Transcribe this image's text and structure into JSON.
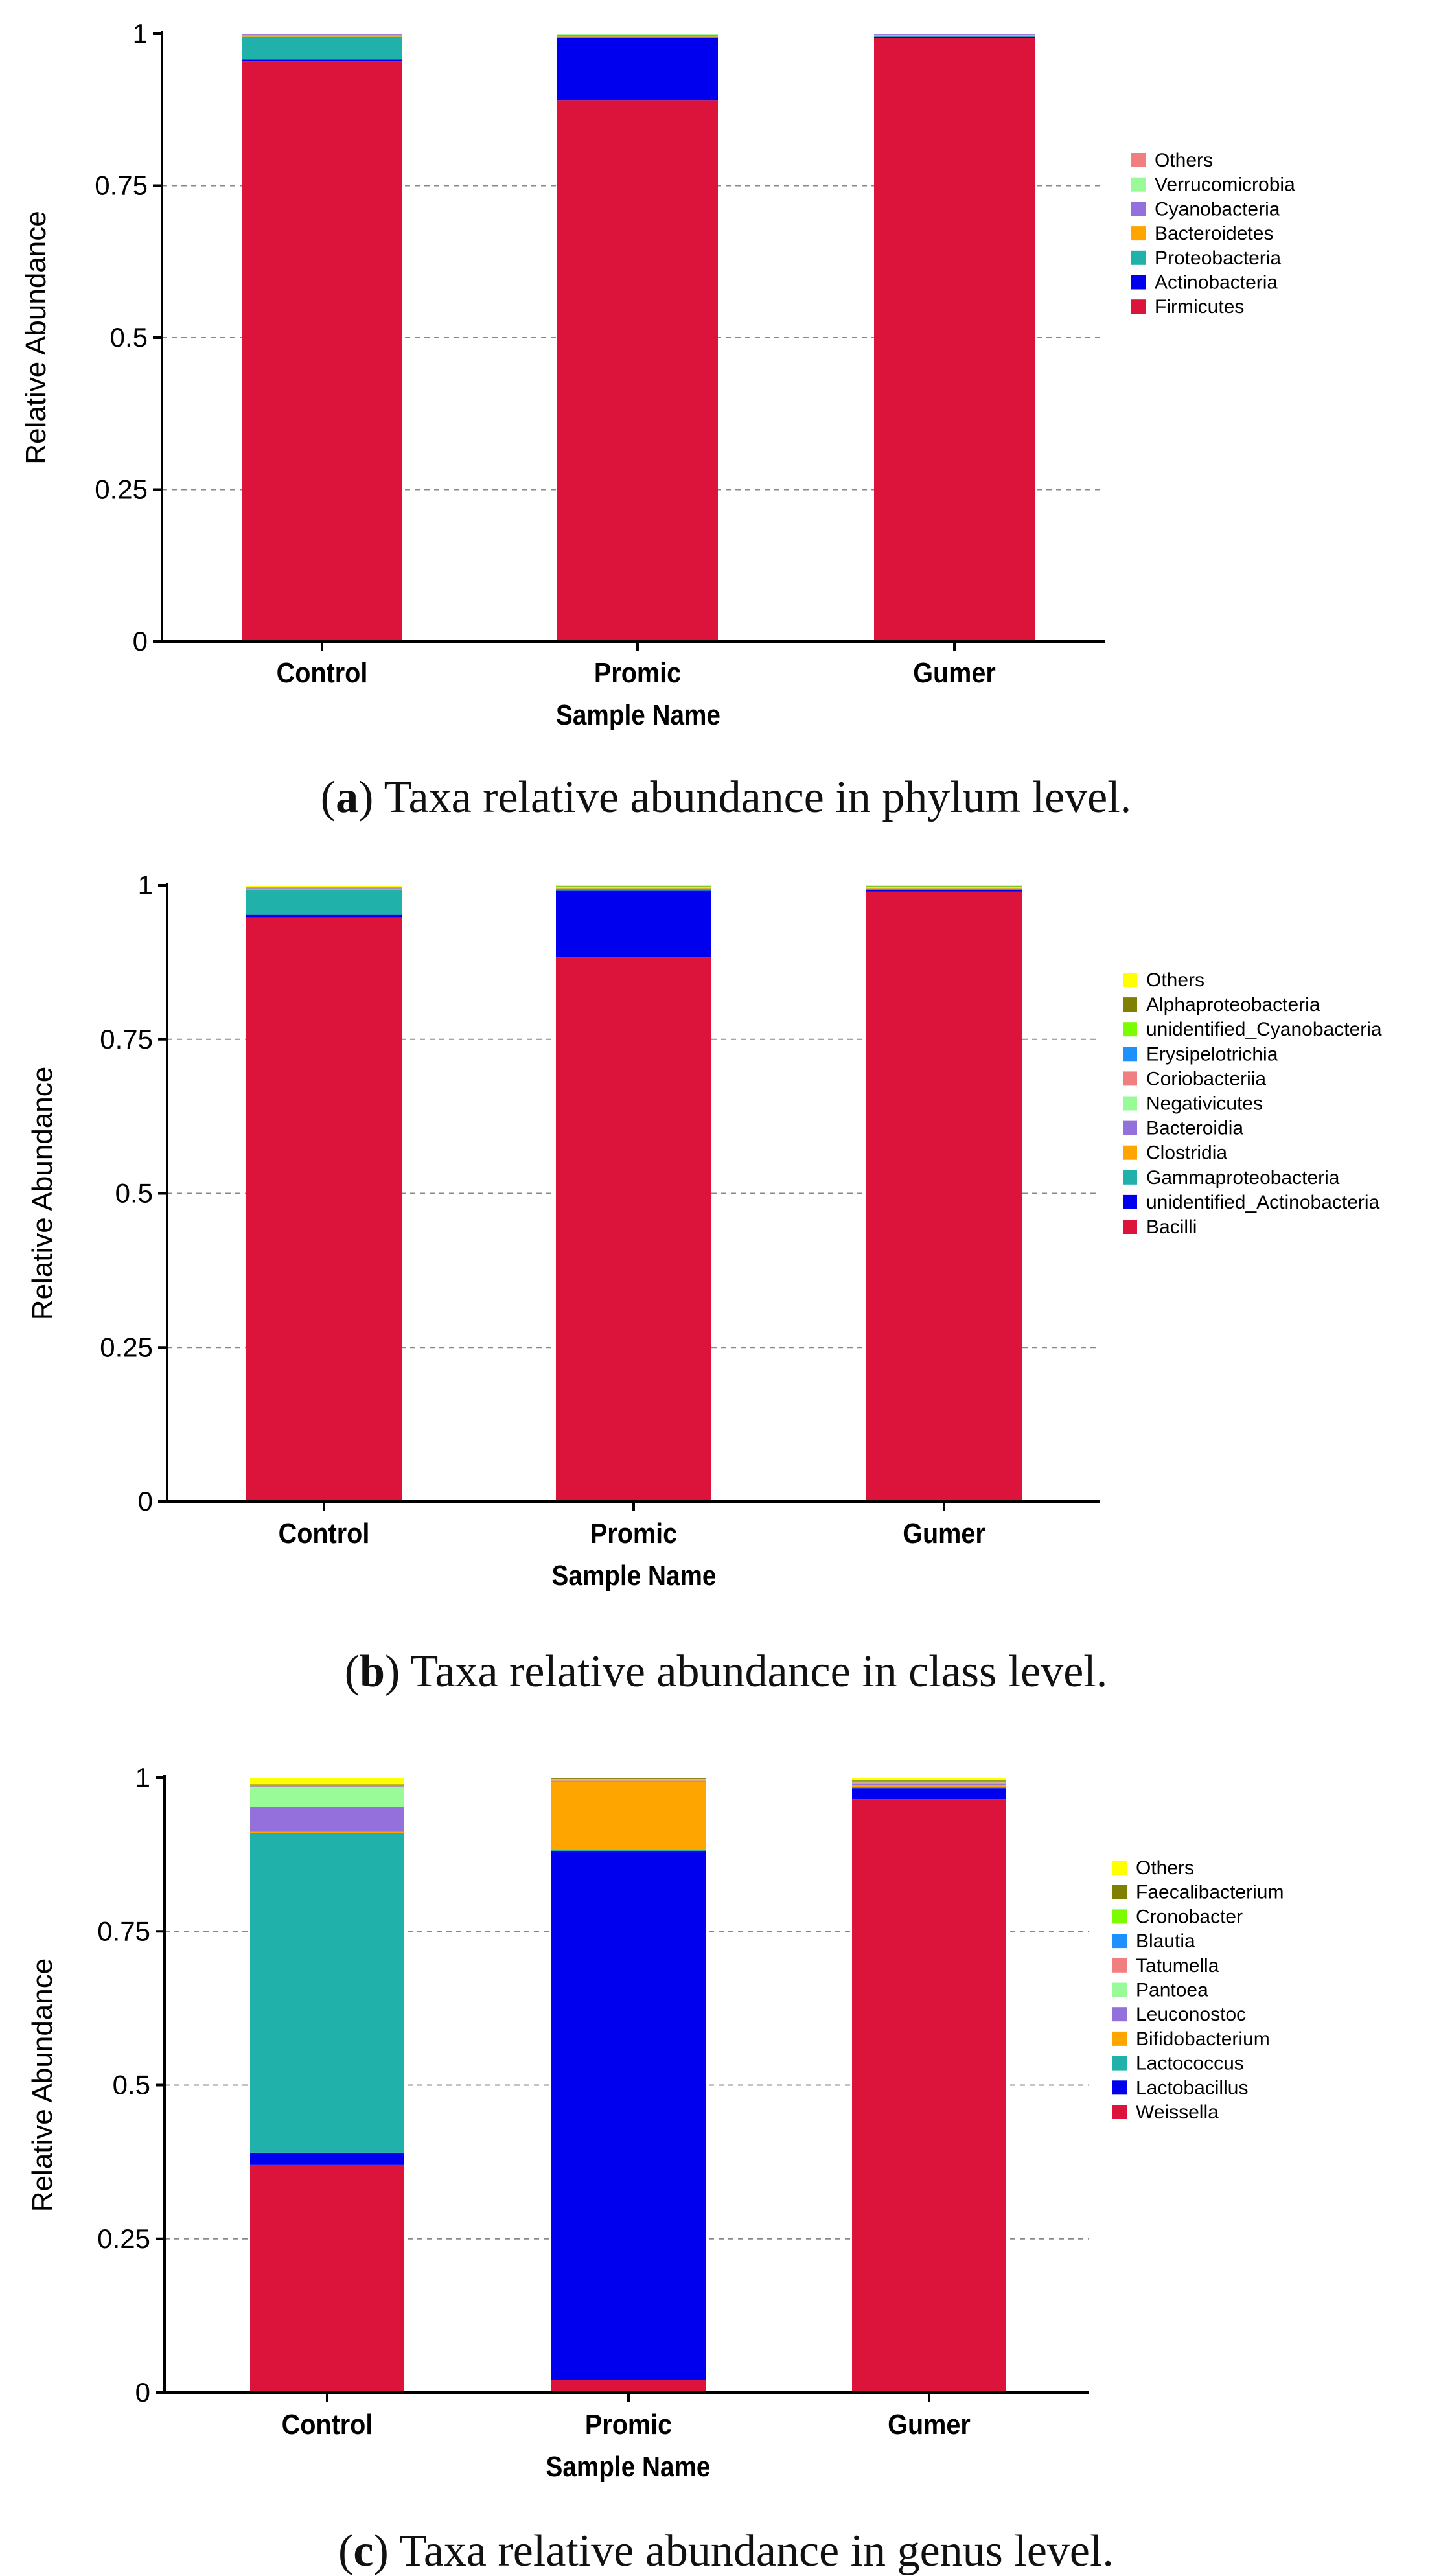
{
  "chart_data": [
    {
      "type": "bar",
      "stacked": true,
      "xlabel": "Sample Name",
      "ylabel": "Relative Abundance",
      "ylim": [
        0,
        1
      ],
      "yticks": [
        "0",
        "0.25",
        "0.5",
        "0.75",
        "1"
      ],
      "categories": [
        "Control",
        "Promic",
        "Gumer"
      ],
      "series": [
        {
          "name": "Firmicutes",
          "color": "#dc143c",
          "values": [
            0.955,
            0.89,
            0.993
          ]
        },
        {
          "name": "Actinobacteria",
          "color": "#0000ee",
          "values": [
            0.003,
            0.103,
            0.002
          ]
        },
        {
          "name": "Proteobacteria",
          "color": "#20b2aa",
          "values": [
            0.037,
            0.002,
            0.002
          ]
        },
        {
          "name": "Bacteroidetes",
          "color": "#ffa500",
          "values": [
            0.003,
            0.002,
            0.001
          ]
        },
        {
          "name": "Cyanobacteria",
          "color": "#9370db",
          "values": [
            0.001,
            0.001,
            0.001
          ]
        },
        {
          "name": "Verrucomicrobia",
          "color": "#98fb98",
          "values": [
            0.0005,
            0.001,
            0.0005
          ]
        },
        {
          "name": "Others",
          "color": "#f08080",
          "values": [
            0.0005,
            0.001,
            0.0005
          ]
        }
      ],
      "legend": [
        "Others",
        "Verrucomicrobia",
        "Cyanobacteria",
        "Bacteroidetes",
        "Proteobacteria",
        "Actinobacteria",
        "Firmicutes"
      ],
      "legend_position": "right",
      "caption_label": "a",
      "caption_text": "Taxa relative abundance in phylum level."
    },
    {
      "type": "bar",
      "stacked": true,
      "xlabel": "Sample Name",
      "ylabel": "Relative Abundance",
      "ylim": [
        0,
        1
      ],
      "yticks": [
        "0",
        "0.25",
        "0.5",
        "0.75",
        "1"
      ],
      "categories": [
        "Control",
        "Promic",
        "Gumer"
      ],
      "series": [
        {
          "name": "Bacilli",
          "color": "#dc143c",
          "values": [
            0.948,
            0.883,
            0.99
          ]
        },
        {
          "name": "unidentified_Actinobacteria",
          "color": "#0000ee",
          "values": [
            0.004,
            0.108,
            0.002
          ]
        },
        {
          "name": "Gammaproteobacteria",
          "color": "#20b2aa",
          "values": [
            0.04,
            0.003,
            0.002
          ]
        },
        {
          "name": "Clostridia",
          "color": "#ffa500",
          "values": [
            0.002,
            0.001,
            0.001
          ]
        },
        {
          "name": "Bacteroidia",
          "color": "#9370db",
          "values": [
            0.001,
            0.001,
            0.001
          ]
        },
        {
          "name": "Negativicutes",
          "color": "#98fb98",
          "values": [
            0.001,
            0.001,
            0.001
          ]
        },
        {
          "name": "Coriobacteriia",
          "color": "#f08080",
          "values": [
            0.0005,
            0.0005,
            0.0005
          ]
        },
        {
          "name": "Erysipelotrichia",
          "color": "#1e90ff",
          "values": [
            0.0005,
            0.0005,
            0.0005
          ]
        },
        {
          "name": "unidentified_Cyanobacteria",
          "color": "#7cfc00",
          "values": [
            0.0005,
            0.0005,
            0.0005
          ]
        },
        {
          "name": "Alphaproteobacteria",
          "color": "#808000",
          "values": [
            0.0005,
            0.0005,
            0.0005
          ]
        },
        {
          "name": "Others",
          "color": "#ffff00",
          "values": [
            0.001,
            0.001,
            0.001
          ]
        }
      ],
      "legend": [
        "Others",
        "Alphaproteobacteria",
        "unidentified_Cyanobacteria",
        "Erysipelotrichia",
        "Coriobacteriia",
        "Negativicutes",
        "Bacteroidia",
        "Clostridia",
        "Gammaproteobacteria",
        "unidentified_Actinobacteria",
        "Bacilli"
      ],
      "legend_position": "right",
      "caption_label": "b",
      "caption_text": "Taxa relative abundance in class level."
    },
    {
      "type": "bar",
      "stacked": true,
      "xlabel": "Sample Name",
      "ylabel": "Relative Abundance",
      "ylim": [
        0,
        1
      ],
      "yticks": [
        "0",
        "0.25",
        "0.5",
        "0.75",
        "1"
      ],
      "categories": [
        "Control",
        "Promic",
        "Gumer"
      ],
      "series": [
        {
          "name": "Weissella",
          "color": "#dc143c",
          "values": [
            0.37,
            0.02,
            0.965
          ]
        },
        {
          "name": "Lactobacillus",
          "color": "#0000ee",
          "values": [
            0.02,
            0.86,
            0.018
          ]
        },
        {
          "name": "Lactococcus",
          "color": "#20b2aa",
          "values": [
            0.52,
            0.003,
            0.002
          ]
        },
        {
          "name": "Bifidobacterium",
          "color": "#ffa500",
          "values": [
            0.002,
            0.11,
            0.003
          ]
        },
        {
          "name": "Leuconostoc",
          "color": "#9370db",
          "values": [
            0.04,
            0.001,
            0.002
          ]
        },
        {
          "name": "Pantoea",
          "color": "#98fb98",
          "values": [
            0.033,
            0.001,
            0.002
          ]
        },
        {
          "name": "Tatumella",
          "color": "#f08080",
          "values": [
            0.001,
            0.001,
            0.001
          ]
        },
        {
          "name": "Blautia",
          "color": "#1e90ff",
          "values": [
            0.001,
            0.001,
            0.001
          ]
        },
        {
          "name": "Cronobacter",
          "color": "#7cfc00",
          "values": [
            0.001,
            0.001,
            0.001
          ]
        },
        {
          "name": "Faecalibacterium",
          "color": "#808000",
          "values": [
            0.001,
            0.001,
            0.001
          ]
        },
        {
          "name": "Others",
          "color": "#ffff00",
          "values": [
            0.011,
            0.001,
            0.004
          ]
        }
      ],
      "legend": [
        "Others",
        "Faecalibacterium",
        "Cronobacter",
        "Blautia",
        "Tatumella",
        "Pantoea",
        "Leuconostoc",
        "Bifidobacterium",
        "Lactococcus",
        "Lactobacillus",
        "Weissella"
      ],
      "legend_position": "right",
      "caption_label": "c",
      "caption_text": "Taxa relative abundance in genus level."
    }
  ]
}
